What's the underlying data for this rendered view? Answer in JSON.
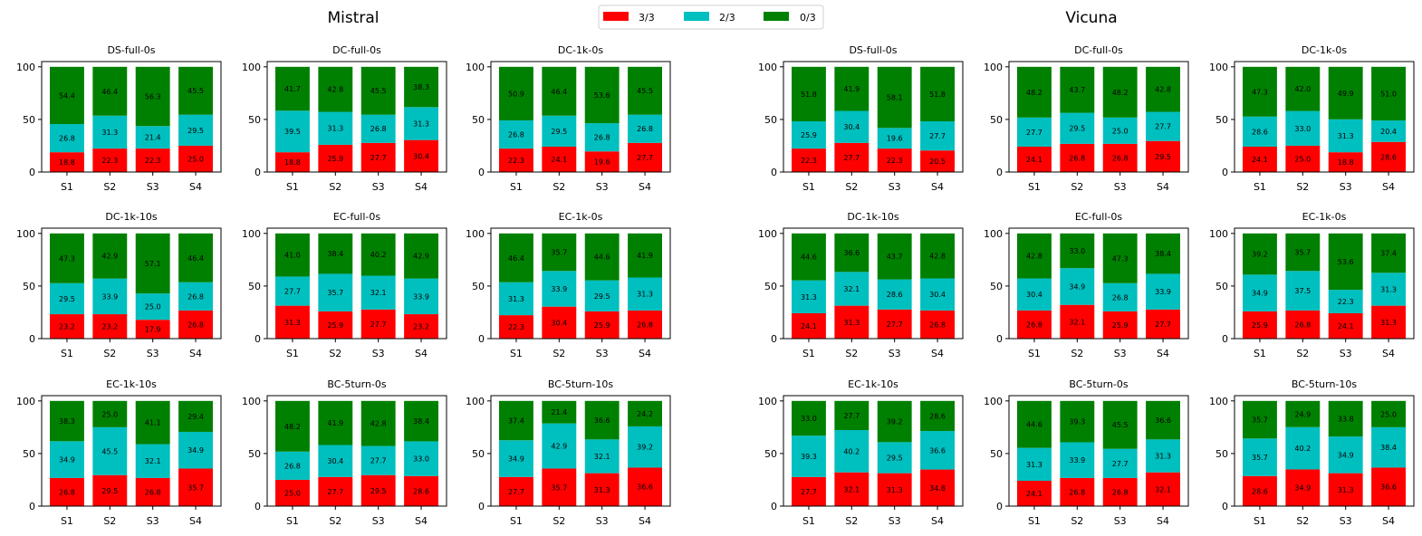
{
  "figure": {
    "legend": {
      "placement": "top-center",
      "items": [
        {
          "label": "3/3",
          "color": "#ff0000"
        },
        {
          "label": "2/3",
          "color": "#00bfbf"
        },
        {
          "label": "0/3",
          "color": "#008000"
        }
      ]
    }
  },
  "chart_data": [
    {
      "type": "bar",
      "stacked": true,
      "title": "Mistral",
      "ylim": [
        0,
        105
      ],
      "yticks": [
        0,
        50,
        100
      ],
      "categories": [
        "S1",
        "S2",
        "S3",
        "S4"
      ],
      "series_names": [
        "3/3",
        "2/3",
        "0/3"
      ],
      "colors": [
        "#ff0000",
        "#00bfbf",
        "#008000"
      ],
      "panels": [
        {
          "title": "DS-full-0s",
          "series": [
            {
              "name": "3/3",
              "values": [
                18.8,
                22.3,
                22.3,
                25.0
              ]
            },
            {
              "name": "2/3",
              "values": [
                26.8,
                31.3,
                21.4,
                29.5
              ]
            },
            {
              "name": "0/3",
              "values": [
                54.4,
                46.4,
                56.3,
                45.5
              ]
            }
          ]
        },
        {
          "title": "DC-full-0s",
          "series": [
            {
              "name": "3/3",
              "values": [
                18.8,
                25.9,
                27.7,
                30.4
              ]
            },
            {
              "name": "2/3",
              "values": [
                39.5,
                31.3,
                26.8,
                31.3
              ]
            },
            {
              "name": "0/3",
              "values": [
                41.7,
                42.8,
                45.5,
                38.3
              ]
            }
          ]
        },
        {
          "title": "DC-1k-0s",
          "series": [
            {
              "name": "3/3",
              "values": [
                22.3,
                24.1,
                19.6,
                27.7
              ]
            },
            {
              "name": "2/3",
              "values": [
                26.8,
                29.5,
                26.8,
                26.8
              ]
            },
            {
              "name": "0/3",
              "values": [
                50.9,
                46.4,
                53.6,
                45.5
              ]
            }
          ]
        },
        {
          "title": "DC-1k-10s",
          "series": [
            {
              "name": "3/3",
              "values": [
                23.2,
                23.2,
                17.9,
                26.8
              ]
            },
            {
              "name": "2/3",
              "values": [
                29.5,
                33.9,
                25.0,
                26.8
              ]
            },
            {
              "name": "0/3",
              "values": [
                47.3,
                42.9,
                57.1,
                46.4
              ]
            }
          ]
        },
        {
          "title": "EC-full-0s",
          "series": [
            {
              "name": "3/3",
              "values": [
                31.3,
                25.9,
                27.7,
                23.2
              ]
            },
            {
              "name": "2/3",
              "values": [
                27.7,
                35.7,
                32.1,
                33.9
              ]
            },
            {
              "name": "0/3",
              "values": [
                41.0,
                38.4,
                40.2,
                42.9
              ]
            }
          ]
        },
        {
          "title": "EC-1k-0s",
          "series": [
            {
              "name": "3/3",
              "values": [
                22.3,
                30.4,
                25.9,
                26.8
              ]
            },
            {
              "name": "2/3",
              "values": [
                31.3,
                33.9,
                29.5,
                31.3
              ]
            },
            {
              "name": "0/3",
              "values": [
                46.4,
                35.7,
                44.6,
                41.9
              ]
            }
          ]
        },
        {
          "title": "EC-1k-10s",
          "series": [
            {
              "name": "3/3",
              "values": [
                26.8,
                29.5,
                26.8,
                35.7
              ]
            },
            {
              "name": "2/3",
              "values": [
                34.9,
                45.5,
                32.1,
                34.9
              ]
            },
            {
              "name": "0/3",
              "values": [
                38.3,
                25.0,
                41.1,
                29.4
              ]
            }
          ]
        },
        {
          "title": "BC-5turn-0s",
          "series": [
            {
              "name": "3/3",
              "values": [
                25.0,
                27.7,
                29.5,
                28.6
              ]
            },
            {
              "name": "2/3",
              "values": [
                26.8,
                30.4,
                27.7,
                33.0
              ]
            },
            {
              "name": "0/3",
              "values": [
                48.2,
                41.9,
                42.8,
                38.4
              ]
            }
          ]
        },
        {
          "title": "BC-5turn-10s",
          "series": [
            {
              "name": "3/3",
              "values": [
                27.7,
                35.7,
                31.3,
                36.6
              ]
            },
            {
              "name": "2/3",
              "values": [
                34.9,
                42.9,
                32.1,
                39.2
              ]
            },
            {
              "name": "0/3",
              "values": [
                37.4,
                21.4,
                36.6,
                24.2
              ]
            }
          ]
        }
      ]
    },
    {
      "type": "bar",
      "stacked": true,
      "title": "Vicuna",
      "ylim": [
        0,
        105
      ],
      "yticks": [
        0,
        50,
        100
      ],
      "categories": [
        "S1",
        "S2",
        "S3",
        "S4"
      ],
      "series_names": [
        "3/3",
        "2/3",
        "0/3"
      ],
      "colors": [
        "#ff0000",
        "#00bfbf",
        "#008000"
      ],
      "panels": [
        {
          "title": "DS-full-0s",
          "series": [
            {
              "name": "3/3",
              "values": [
                22.3,
                27.7,
                22.3,
                20.5
              ]
            },
            {
              "name": "2/3",
              "values": [
                25.9,
                30.4,
                19.6,
                27.7
              ]
            },
            {
              "name": "0/3",
              "values": [
                51.8,
                41.9,
                58.1,
                51.8
              ]
            }
          ]
        },
        {
          "title": "DC-full-0s",
          "series": [
            {
              "name": "3/3",
              "values": [
                24.1,
                26.8,
                26.8,
                29.5
              ]
            },
            {
              "name": "2/3",
              "values": [
                27.7,
                29.5,
                25.0,
                27.7
              ]
            },
            {
              "name": "0/3",
              "values": [
                48.2,
                43.7,
                48.2,
                42.8
              ]
            }
          ]
        },
        {
          "title": "DC-1k-0s",
          "series": [
            {
              "name": "3/3",
              "values": [
                24.1,
                25.0,
                18.8,
                28.6
              ]
            },
            {
              "name": "2/3",
              "values": [
                28.6,
                33.0,
                31.3,
                20.4
              ]
            },
            {
              "name": "0/3",
              "values": [
                47.3,
                42.0,
                49.9,
                51.0
              ]
            }
          ]
        },
        {
          "title": "DC-1k-10s",
          "series": [
            {
              "name": "3/3",
              "values": [
                24.1,
                31.3,
                27.7,
                26.8
              ]
            },
            {
              "name": "2/3",
              "values": [
                31.3,
                32.1,
                28.6,
                30.4
              ]
            },
            {
              "name": "0/3",
              "values": [
                44.6,
                36.6,
                43.7,
                42.8
              ]
            }
          ]
        },
        {
          "title": "EC-full-0s",
          "series": [
            {
              "name": "3/3",
              "values": [
                26.8,
                32.1,
                25.9,
                27.7
              ]
            },
            {
              "name": "2/3",
              "values": [
                30.4,
                34.9,
                26.8,
                33.9
              ]
            },
            {
              "name": "0/3",
              "values": [
                42.8,
                33.0,
                47.3,
                38.4
              ]
            }
          ]
        },
        {
          "title": "EC-1k-0s",
          "series": [
            {
              "name": "3/3",
              "values": [
                25.9,
                26.8,
                24.1,
                31.3
              ]
            },
            {
              "name": "2/3",
              "values": [
                34.9,
                37.5,
                22.3,
                31.3
              ]
            },
            {
              "name": "0/3",
              "values": [
                39.2,
                35.7,
                53.6,
                37.4
              ]
            }
          ]
        },
        {
          "title": "EC-1k-10s",
          "series": [
            {
              "name": "3/3",
              "values": [
                27.7,
                32.1,
                31.3,
                34.8
              ]
            },
            {
              "name": "2/3",
              "values": [
                39.3,
                40.2,
                29.5,
                36.6
              ]
            },
            {
              "name": "0/3",
              "values": [
                33.0,
                27.7,
                39.2,
                28.6
              ]
            }
          ]
        },
        {
          "title": "BC-5turn-0s",
          "series": [
            {
              "name": "3/3",
              "values": [
                24.1,
                26.8,
                26.8,
                32.1
              ]
            },
            {
              "name": "2/3",
              "values": [
                31.3,
                33.9,
                27.7,
                31.3
              ]
            },
            {
              "name": "0/3",
              "values": [
                44.6,
                39.3,
                45.5,
                36.6
              ]
            }
          ]
        },
        {
          "title": "BC-5turn-10s",
          "series": [
            {
              "name": "3/3",
              "values": [
                28.6,
                34.9,
                31.3,
                36.6
              ]
            },
            {
              "name": "2/3",
              "values": [
                35.7,
                40.2,
                34.9,
                38.4
              ]
            },
            {
              "name": "0/3",
              "values": [
                35.7,
                24.9,
                33.8,
                25.0
              ]
            }
          ]
        }
      ]
    }
  ]
}
